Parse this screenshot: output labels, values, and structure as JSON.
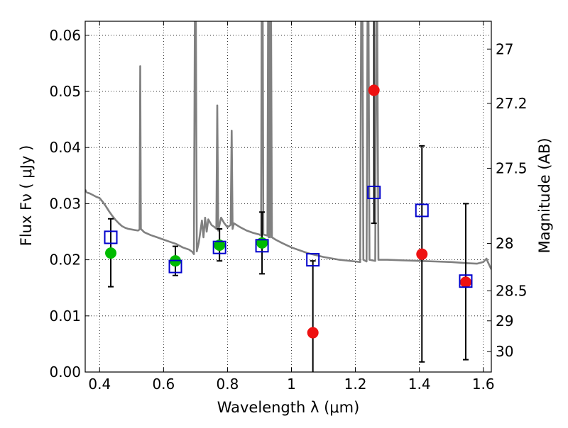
{
  "chart_data": {
    "type": "scatter",
    "xlabel": "Wavelength  λ (μm)",
    "ylabel": "Flux  Fν  ( μJy )",
    "y2label": "Magnitude (AB)",
    "xlim": [
      0.355,
      1.625
    ],
    "ylim": [
      0.0,
      0.0625
    ],
    "grid": true,
    "grid_style": "dotted",
    "x_ticks": [
      0.4,
      0.6,
      0.8,
      1.0,
      1.2,
      1.4,
      1.6
    ],
    "x_tick_labels": [
      "0.4",
      "0.6",
      "0.8",
      "1",
      "1.2",
      "1.4",
      "1.6"
    ],
    "y_ticks": [
      0.0,
      0.01,
      0.02,
      0.03,
      0.04,
      0.05,
      0.06
    ],
    "y_tick_labels": [
      "0.00",
      "0.01",
      "0.02",
      "0.03",
      "0.04",
      "0.05",
      "0.06"
    ],
    "y2_ticks": [
      {
        "mag": 27,
        "label": "27"
      },
      {
        "mag": 27.2,
        "label": "27.2"
      },
      {
        "mag": 27.5,
        "label": "27.5"
      },
      {
        "mag": 28,
        "label": "28"
      },
      {
        "mag": 28.5,
        "label": "28.5"
      },
      {
        "mag": 29,
        "label": "29"
      },
      {
        "mag": 30,
        "label": "30"
      }
    ],
    "colors": {
      "template": "#808080",
      "detected": "#00bb00",
      "observed_error": "#000000",
      "upper_limit_like": "#ee1111",
      "model": "#0000cc"
    },
    "series": [
      {
        "kind": "model-template-sed",
        "points": [
          [
            0.355,
            0.0325
          ],
          [
            0.36,
            0.032
          ],
          [
            0.37,
            0.0318
          ],
          [
            0.38,
            0.0315
          ],
          [
            0.39,
            0.0312
          ],
          [
            0.4,
            0.031
          ],
          [
            0.41,
            0.0303
          ],
          [
            0.42,
            0.0295
          ],
          [
            0.43,
            0.0286
          ],
          [
            0.44,
            0.0278
          ],
          [
            0.45,
            0.0271
          ],
          [
            0.46,
            0.0265
          ],
          [
            0.47,
            0.026
          ],
          [
            0.48,
            0.0257
          ],
          [
            0.49,
            0.0255
          ],
          [
            0.5,
            0.0254
          ],
          [
            0.51,
            0.0253
          ],
          [
            0.52,
            0.0252
          ],
          [
            0.525,
            0.0254
          ],
          [
            0.527,
            0.0545
          ],
          [
            0.529,
            0.0255
          ],
          [
            0.54,
            0.0249
          ],
          [
            0.56,
            0.0244
          ],
          [
            0.58,
            0.024
          ],
          [
            0.6,
            0.0236
          ],
          [
            0.62,
            0.0232
          ],
          [
            0.64,
            0.0228
          ],
          [
            0.66,
            0.0222
          ],
          [
            0.68,
            0.0218
          ],
          [
            0.69,
            0.0214
          ],
          [
            0.695,
            0.021
          ],
          [
            0.698,
            0.065
          ],
          [
            0.701,
            0.065
          ],
          [
            0.704,
            0.0215
          ],
          [
            0.71,
            0.023
          ],
          [
            0.72,
            0.027
          ],
          [
            0.725,
            0.024
          ],
          [
            0.73,
            0.0275
          ],
          [
            0.735,
            0.025
          ],
          [
            0.74,
            0.0272
          ],
          [
            0.75,
            0.0262
          ],
          [
            0.76,
            0.0258
          ],
          [
            0.765,
            0.0255
          ],
          [
            0.768,
            0.0475
          ],
          [
            0.771,
            0.0252
          ],
          [
            0.78,
            0.0275
          ],
          [
            0.79,
            0.0265
          ],
          [
            0.8,
            0.0258
          ],
          [
            0.81,
            0.0262
          ],
          [
            0.813,
            0.043
          ],
          [
            0.816,
            0.0255
          ],
          [
            0.82,
            0.0265
          ],
          [
            0.84,
            0.0258
          ],
          [
            0.86,
            0.0252
          ],
          [
            0.88,
            0.0248
          ],
          [
            0.9,
            0.0245
          ],
          [
            0.905,
            0.0243
          ],
          [
            0.907,
            0.065
          ],
          [
            0.91,
            0.065
          ],
          [
            0.912,
            0.0245
          ],
          [
            0.925,
            0.0243
          ],
          [
            0.927,
            0.065
          ],
          [
            0.929,
            0.024
          ],
          [
            0.931,
            0.065
          ],
          [
            0.933,
            0.024
          ],
          [
            0.936,
            0.065
          ],
          [
            0.939,
            0.024
          ],
          [
            0.95,
            0.0236
          ],
          [
            0.97,
            0.023
          ],
          [
            1.0,
            0.0222
          ],
          [
            1.05,
            0.0212
          ],
          [
            1.1,
            0.0205
          ],
          [
            1.15,
            0.02
          ],
          [
            1.2,
            0.0197
          ],
          [
            1.215,
            0.0196
          ],
          [
            1.218,
            0.065
          ],
          [
            1.222,
            0.065
          ],
          [
            1.225,
            0.02
          ],
          [
            1.235,
            0.0197
          ],
          [
            1.238,
            0.065
          ],
          [
            1.241,
            0.065
          ],
          [
            1.244,
            0.02
          ],
          [
            1.262,
            0.0198
          ],
          [
            1.265,
            0.065
          ],
          [
            1.268,
            0.065
          ],
          [
            1.272,
            0.02
          ],
          [
            1.3,
            0.02
          ],
          [
            1.35,
            0.0199
          ],
          [
            1.4,
            0.0198
          ],
          [
            1.45,
            0.0197
          ],
          [
            1.5,
            0.0196
          ],
          [
            1.55,
            0.0194
          ],
          [
            1.58,
            0.0193
          ],
          [
            1.6,
            0.0196
          ],
          [
            1.61,
            0.0202
          ],
          [
            1.615,
            0.0195
          ],
          [
            1.625,
            0.0183
          ]
        ]
      },
      {
        "kind": "photometry-with-errors",
        "points": [
          {
            "x": 0.435,
            "y": 0.0212,
            "err_lo": 0.0152,
            "err_hi": 0.0273,
            "color": "detected"
          },
          {
            "x": 0.637,
            "y": 0.0198,
            "err_lo": 0.0172,
            "err_hi": 0.0224,
            "color": "detected"
          },
          {
            "x": 0.775,
            "y": 0.0226,
            "err_lo": 0.0198,
            "err_hi": 0.0255,
            "color": "detected"
          },
          {
            "x": 0.908,
            "y": 0.023,
            "err_lo": 0.0175,
            "err_hi": 0.0285,
            "color": "detected"
          },
          {
            "x": 1.067,
            "y": 0.007,
            "err_lo": 0.0,
            "err_hi": 0.0198,
            "color": "upper_limit_like"
          },
          {
            "x": 1.258,
            "y": 0.0502,
            "err_lo": 0.0265,
            "err_hi": 0.0625,
            "color": "upper_limit_like"
          },
          {
            "x": 1.408,
            "y": 0.021,
            "err_lo": 0.0018,
            "err_hi": 0.0403,
            "color": "upper_limit_like"
          },
          {
            "x": 1.545,
            "y": 0.016,
            "err_lo": 0.0022,
            "err_hi": 0.03,
            "color": "upper_limit_like"
          }
        ]
      },
      {
        "kind": "model-band-fluxes",
        "points": [
          [
            0.435,
            0.024
          ],
          [
            0.637,
            0.0188
          ],
          [
            0.775,
            0.0222
          ],
          [
            0.908,
            0.0225
          ],
          [
            1.067,
            0.02
          ],
          [
            1.258,
            0.032
          ],
          [
            1.408,
            0.0288
          ],
          [
            1.545,
            0.0162
          ]
        ]
      }
    ]
  }
}
